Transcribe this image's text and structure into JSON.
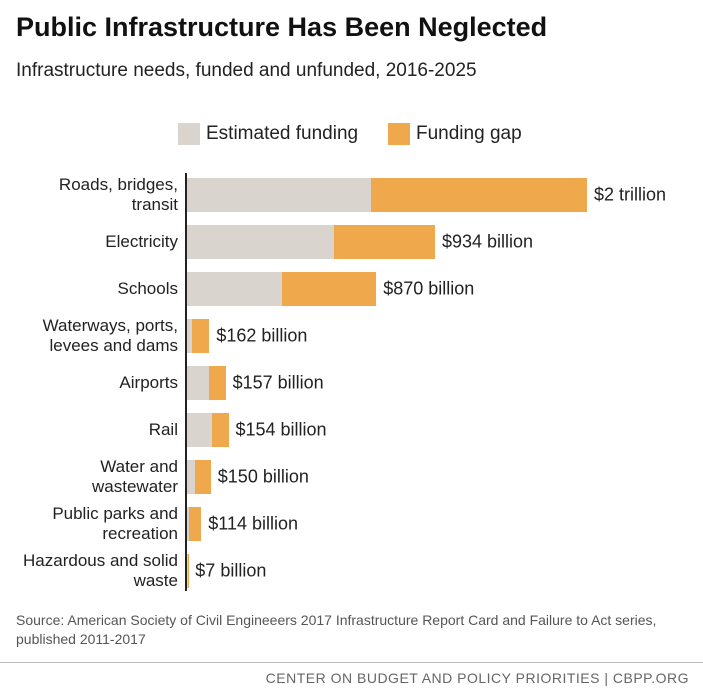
{
  "chart_data": {
    "type": "stacked-barh",
    "title": "Public Infrastructure Has Been Neglected",
    "subtitle": "Infrastructure needs, funded and unfunded, 2016-2025",
    "categories": [
      "Roads, bridges, transit",
      "Electricity",
      "Schools",
      "Waterways, ports, levees and dams",
      "Airports",
      "Rail",
      "Water and wastewater",
      "Public parks and recreation",
      "Hazardous and solid waste"
    ],
    "series": [
      {
        "name": "Estimated funding",
        "color": "#d9d4cd",
        "values": [
          1700,
          1360,
          880,
          45,
          200,
          230,
          70,
          18,
          5
        ]
      },
      {
        "name": "Funding gap",
        "color": "#f0a84c",
        "values": [
          2000,
          934,
          870,
          162,
          157,
          154,
          150,
          114,
          7
        ],
        "value_labels": [
          "$2 trillion",
          "$934 billion",
          "$870 billion",
          "$162 billion",
          "$157 billion",
          "$154 billion",
          "$150 billion",
          "$114 billion",
          "$7 billion"
        ]
      }
    ],
    "source": "Source: American Society of Civil Engineeers 2017 Infrastructure Report Card and Failure to Act series, published 2011-2017",
    "footer": "CENTER ON BUDGET AND POLICY PRIORITIES | CBPP.ORG"
  }
}
